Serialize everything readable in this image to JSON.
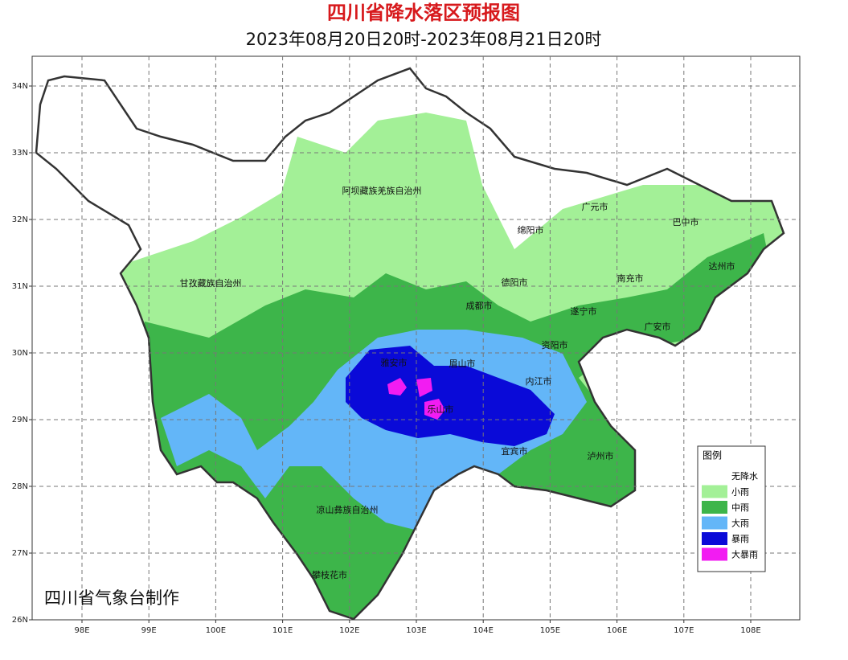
{
  "title": "四川省降水落区预报图",
  "subtitle": "2023年08月20日20时-2023年08月21日20时",
  "lon_ticks": [
    {
      "value": 98,
      "label": "98E"
    },
    {
      "value": 99,
      "label": "99E"
    },
    {
      "value": 100,
      "label": "100E"
    },
    {
      "value": 101,
      "label": "101E"
    },
    {
      "value": 102,
      "label": "102E"
    },
    {
      "value": 103,
      "label": "103E"
    },
    {
      "value": 104,
      "label": "104E"
    },
    {
      "value": 105,
      "label": "105E"
    },
    {
      "value": 106,
      "label": "106E"
    },
    {
      "value": 107,
      "label": "107E"
    },
    {
      "value": 108,
      "label": "108E"
    }
  ],
  "lat_ticks": [
    {
      "value": 34,
      "label": "34N"
    },
    {
      "value": 33,
      "label": "33N"
    },
    {
      "value": 32,
      "label": "32N"
    },
    {
      "value": 31,
      "label": "31N"
    },
    {
      "value": 30,
      "label": "30N"
    },
    {
      "value": 29,
      "label": "29N"
    },
    {
      "value": 28,
      "label": "28N"
    },
    {
      "value": 27,
      "label": "27N"
    },
    {
      "value": 26,
      "label": "26N"
    }
  ],
  "places": [
    "阿坝藏族羌族自治州",
    "甘孜藏族自治州",
    "绵阳市",
    "广元市",
    "巴中市",
    "达州市",
    "南充市",
    "德阳市",
    "成都市",
    "遂宁市",
    "广安市",
    "资阳市",
    "眉山市",
    "雅安市",
    "内江市",
    "乐山市",
    "宜宾市",
    "泸州市",
    "凉山彝族自治州",
    "攀枝花市"
  ],
  "legend": {
    "title": "图例",
    "items": [
      {
        "name": "无降水",
        "color": "#ffffff"
      },
      {
        "name": "小雨",
        "color": "#a3f097"
      },
      {
        "name": "中雨",
        "color": "#3db54a"
      },
      {
        "name": "大雨",
        "color": "#63b6f8"
      },
      {
        "name": "暴雨",
        "color": "#0a0ad8"
      },
      {
        "name": "大暴雨",
        "color": "#f21cf2"
      }
    ]
  },
  "credit": "四川省气象台制作"
}
